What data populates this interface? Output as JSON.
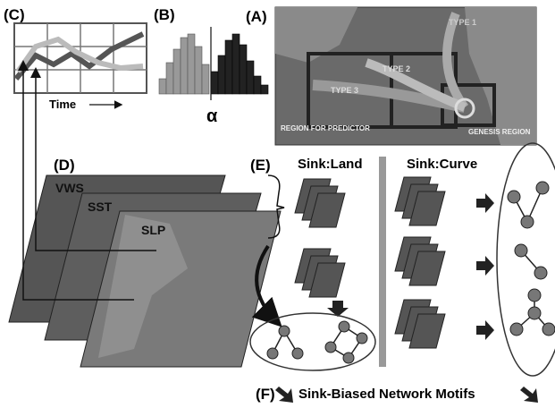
{
  "panel_c": {
    "label": "(C)",
    "axis_label": "Time"
  },
  "panel_b": {
    "label": "(B)",
    "symbol": "α"
  },
  "panel_a": {
    "label": "(A)",
    "types": [
      "TYPE 1",
      "TYPE 2",
      "TYPE 3"
    ],
    "predictor_region": "REGION FOR PREDICTOR",
    "genesis_region": "GENESIS REGION"
  },
  "panel_d": {
    "label": "(D)",
    "layers": [
      "VWS",
      "SST",
      "SLP"
    ]
  },
  "panel_e": {
    "label": "(E)",
    "sink_land": "Sink:Land",
    "sink_curve": "Sink:Curve"
  },
  "panel_f": {
    "label": "(F)",
    "title": "Sink-Biased Network Motifs"
  }
}
